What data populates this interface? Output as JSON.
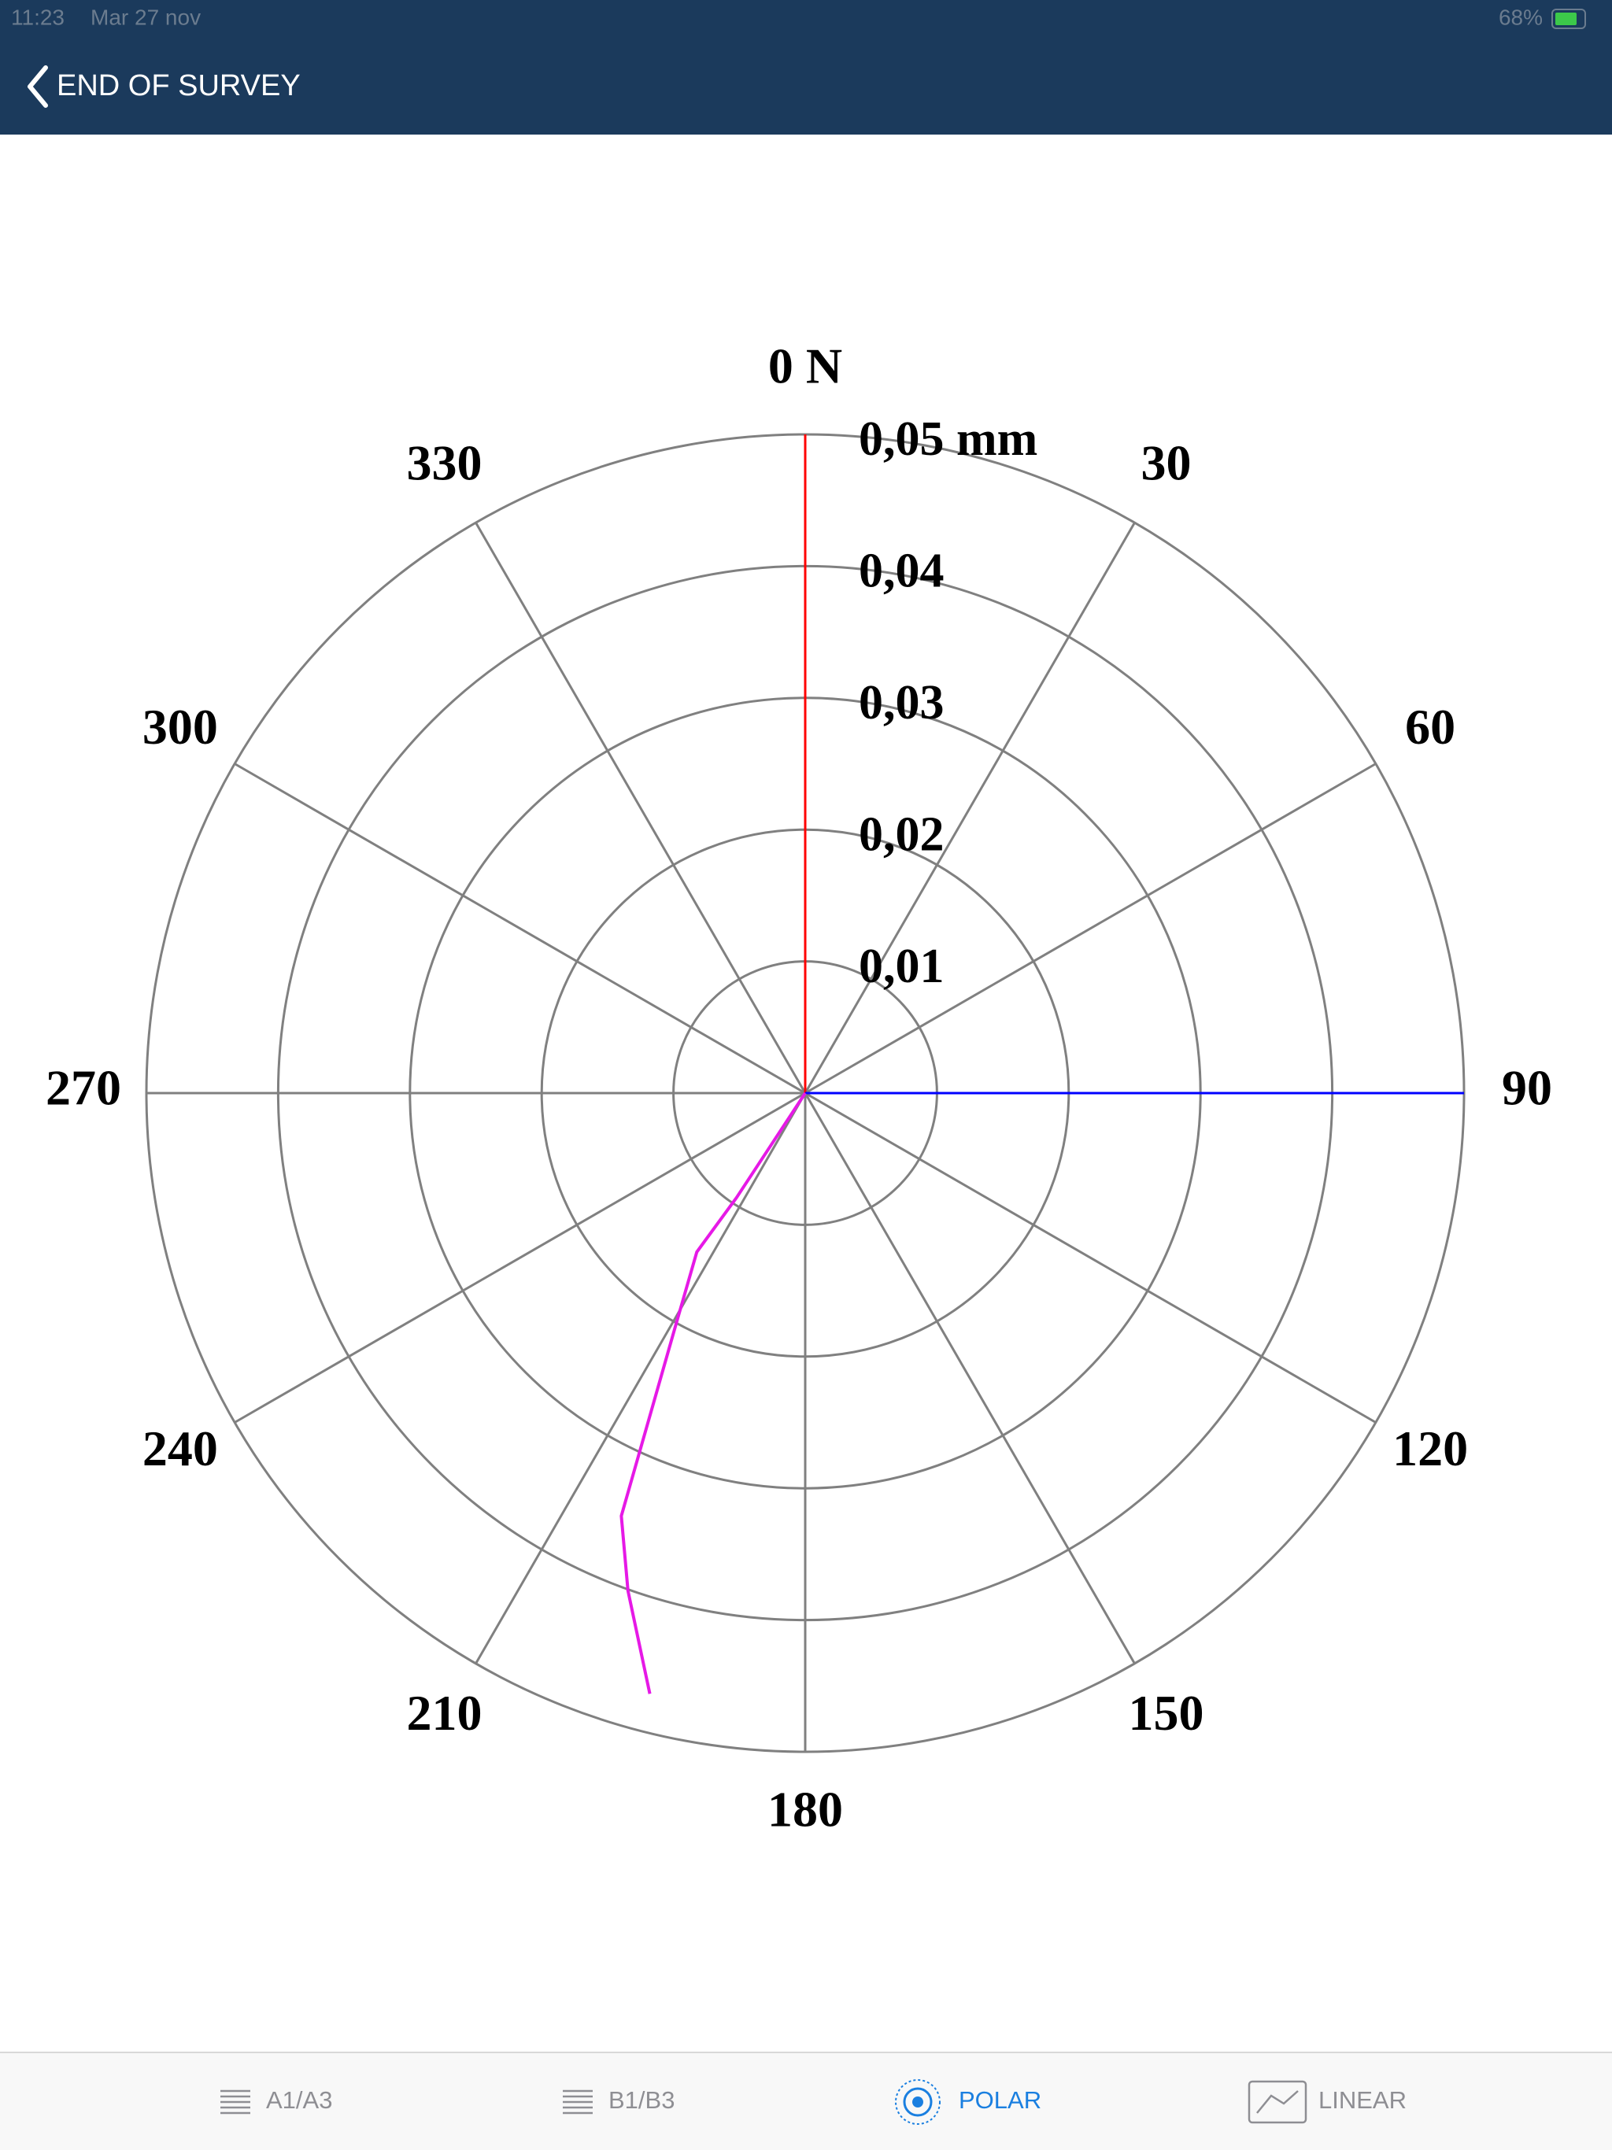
{
  "status_bar": {
    "time": "11:23",
    "date": "Mar 27 nov",
    "battery": "68%"
  },
  "nav": {
    "back_title": "END OF SURVEY"
  },
  "chart_data": {
    "type": "polar-line",
    "theta_labels": [
      "0 N",
      "30",
      "60",
      "90",
      "120",
      "150",
      "180",
      "210",
      "240",
      "270",
      "300",
      "330"
    ],
    "thetaticks": [
      0,
      30,
      60,
      90,
      120,
      150,
      180,
      210,
      240,
      270,
      300,
      330
    ],
    "rlim": [
      0,
      0.05
    ],
    "rticks": [
      {
        "value": 0.01,
        "label": "0,01"
      },
      {
        "value": 0.02,
        "label": "0,02"
      },
      {
        "value": 0.03,
        "label": "0,03"
      },
      {
        "value": 0.04,
        "label": "0,04"
      },
      {
        "value": 0.05,
        "label": "0,05 mm"
      }
    ],
    "series": [
      {
        "color": "#e619e6",
        "theta": [
          0,
          213.3,
          214.3,
          209.2,
          203.5,
          199.6,
          194.5
        ],
        "r": [
          0,
          0.0095,
          0.0146,
          0.0201,
          0.035,
          0.0401,
          0.0471
        ]
      }
    ],
    "grid": true
  },
  "tabs": [
    {
      "label": "A1/A3",
      "active": false
    },
    {
      "label": "B1/B3",
      "active": false
    },
    {
      "label": "POLAR",
      "active": true
    },
    {
      "label": "LINEAR",
      "active": false
    }
  ]
}
